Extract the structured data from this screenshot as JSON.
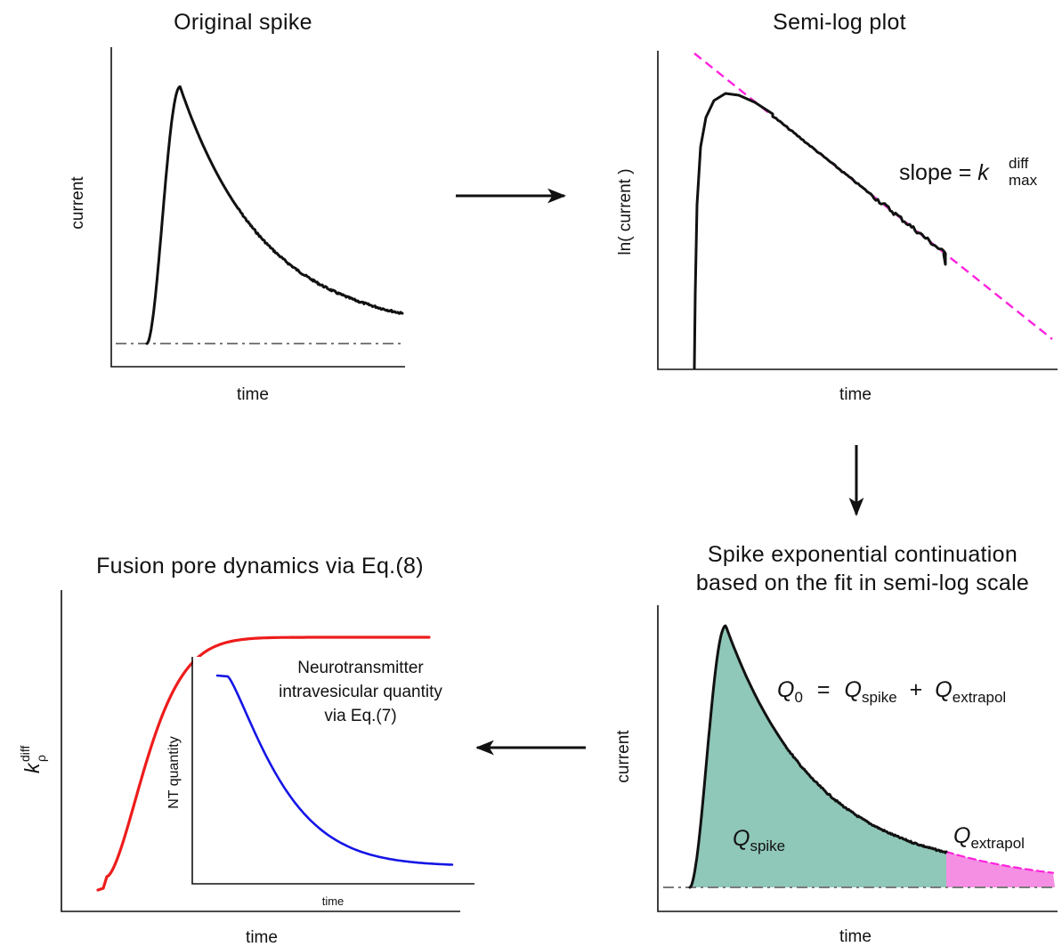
{
  "panels": {
    "original": {
      "title": "Original spike",
      "xlabel": "time",
      "ylabel": "current"
    },
    "semilog": {
      "title": "Semi-log plot",
      "xlabel": "time",
      "ylabel": "ln( current )",
      "slope_text": "slope = ",
      "slope_symbol": "k",
      "slope_sup": "diff",
      "slope_sub": "max"
    },
    "continuation": {
      "title_line1": "Spike exponential continuation",
      "title_line2": "based on the fit in semi-log scale",
      "xlabel": "time",
      "ylabel": "current",
      "eq_q0": "Q",
      "eq_q0_sub": "0",
      "eq_equals": "=",
      "eq_qspike": "Q",
      "eq_qspike_sub": "spike",
      "eq_plus": "+",
      "eq_qextra": "Q",
      "eq_qextra_sub": "extrapol",
      "area_label": "Q",
      "area_label_sub": "spike",
      "extra_label": "Q",
      "extra_label_sub": "extrapol"
    },
    "fusion": {
      "title": "Fusion pore dynamics via Eq.(8)",
      "xlabel": "time",
      "ylabel_symbol": "k",
      "ylabel_sup": "diff",
      "ylabel_sub": "ρ",
      "inset_ylabel": "NT quantity",
      "inset_xlabel": "time",
      "inset_note_line1": "Neurotransmitter",
      "inset_note_line2": "intravesicular quantity",
      "inset_note_line3": "via Eq.(7)"
    }
  },
  "colors": {
    "spike": "#111111",
    "baseline": "#7a7a7a",
    "fit": "#ff22dd",
    "area_fill": "#8fc7b8",
    "extrapol_fill": "#f58fe3",
    "kdiff_curve": "#ee1c1c",
    "nt_curve": "#1515e6"
  },
  "icons": {
    "arrow_right": "arrow-right-icon",
    "arrow_down": "arrow-down-icon",
    "arrow_left": "arrow-left-icon"
  }
}
